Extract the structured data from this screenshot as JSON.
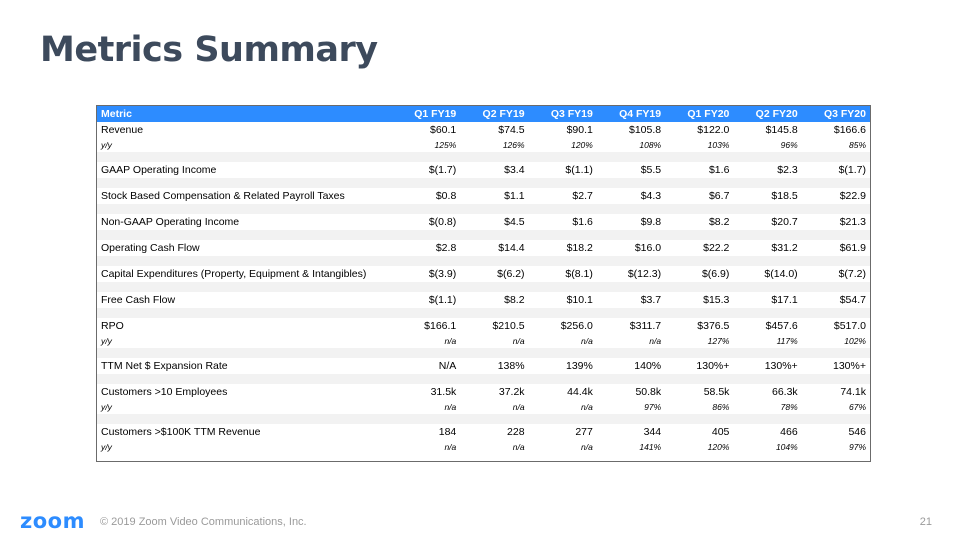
{
  "title": "Metrics Summary",
  "table": {
    "headers": [
      "Metric",
      "Q1 FY19",
      "Q2 FY19",
      "Q3 FY19",
      "Q4 FY19",
      "Q1 FY20",
      "Q2 FY20",
      "Q3 FY20"
    ],
    "rows": [
      {
        "label": "Revenue",
        "values": [
          "$60.1",
          "$74.5",
          "$90.1",
          "$105.8",
          "$122.0",
          "$145.8",
          "$166.6"
        ],
        "yoy": [
          "125%",
          "126%",
          "120%",
          "108%",
          "103%",
          "96%",
          "85%"
        ]
      },
      {
        "label": "GAAP Operating Income",
        "values": [
          "$(1.7)",
          "$3.4",
          "$(1.1)",
          "$5.5",
          "$1.6",
          "$2.3",
          "$(1.7)"
        ]
      },
      {
        "label": "Stock Based Compensation & Related Payroll Taxes",
        "values": [
          "$0.8",
          "$1.1",
          "$2.7",
          "$4.3",
          "$6.7",
          "$18.5",
          "$22.9"
        ]
      },
      {
        "label": "Non-GAAP Operating Income",
        "values": [
          "$(0.8)",
          "$4.5",
          "$1.6",
          "$9.8",
          "$8.2",
          "$20.7",
          "$21.3"
        ]
      },
      {
        "label": "Operating Cash Flow",
        "values": [
          "$2.8",
          "$14.4",
          "$18.2",
          "$16.0",
          "$22.2",
          "$31.2",
          "$61.9"
        ]
      },
      {
        "label": "Capital Expenditures (Property, Equipment & Intangibles)",
        "values": [
          "$(3.9)",
          "$(6.2)",
          "$(8.1)",
          "$(12.3)",
          "$(6.9)",
          "$(14.0)",
          "$(7.2)"
        ]
      },
      {
        "label": "Free Cash Flow",
        "values": [
          "$(1.1)",
          "$8.2",
          "$10.1",
          "$3.7",
          "$15.3",
          "$17.1",
          "$54.7"
        ]
      },
      {
        "label": "RPO",
        "values": [
          "$166.1",
          "$210.5",
          "$256.0",
          "$311.7",
          "$376.5",
          "$457.6",
          "$517.0"
        ],
        "yoy": [
          "n/a",
          "n/a",
          "n/a",
          "n/a",
          "127%",
          "117%",
          "102%"
        ]
      },
      {
        "label": "TTM Net $ Expansion Rate",
        "values": [
          "N/A",
          "138%",
          "139%",
          "140%",
          "130%+",
          "130%+",
          "130%+"
        ]
      },
      {
        "label": "Customers >10 Employees",
        "values": [
          "31.5k",
          "37.2k",
          "44.4k",
          "50.8k",
          "58.5k",
          "66.3k",
          "74.1k"
        ],
        "yoy": [
          "n/a",
          "n/a",
          "n/a",
          "97%",
          "86%",
          "78%",
          "67%"
        ]
      },
      {
        "label": "Customers >$100K TTM Revenue",
        "values": [
          "184",
          "228",
          "277",
          "344",
          "405",
          "466",
          "546"
        ],
        "yoy": [
          "n/a",
          "n/a",
          "n/a",
          "141%",
          "120%",
          "104%",
          "97%"
        ]
      }
    ],
    "yoy_label": "y/y"
  },
  "footer": {
    "logo": "zoom",
    "copyright": "© 2019 Zoom Video Communications, Inc.",
    "page": "21"
  },
  "colors": {
    "header_bg": "#2d8cff",
    "title": "#3d4a5c",
    "shade": "#f2f2f2"
  }
}
